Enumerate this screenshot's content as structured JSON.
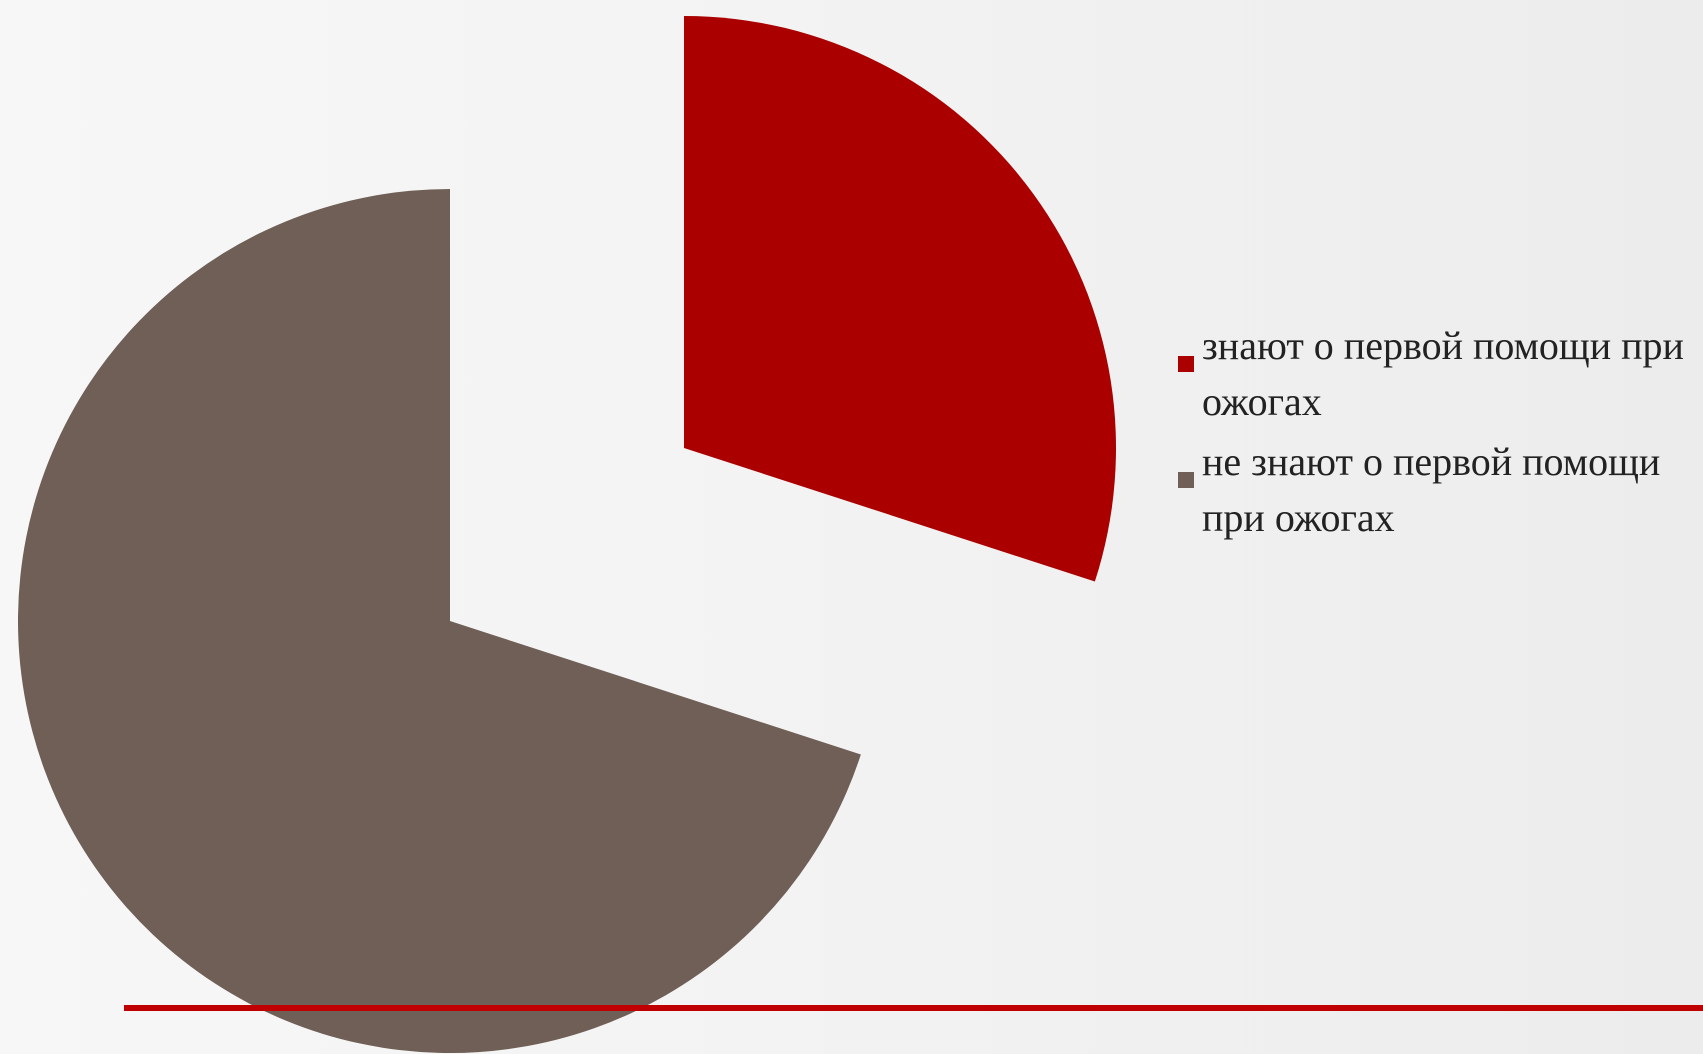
{
  "chart_data": {
    "type": "pie",
    "title": "",
    "categories": [
      "знают о первой помощи при ожогах",
      "не знают о первой помощи при ожогах"
    ],
    "values": [
      30,
      70
    ],
    "colors": [
      "#aa0000",
      "#6f5f56"
    ],
    "exploded": true,
    "legend_position": "right"
  },
  "legend": {
    "items": [
      {
        "label": "знают о первой помощи при ожогах",
        "color": "#aa0000"
      },
      {
        "label": "не знают о первой помощи при ожогах",
        "color": "#6f5f56"
      }
    ]
  },
  "theme": {
    "accent_line_color": "#c00000"
  }
}
